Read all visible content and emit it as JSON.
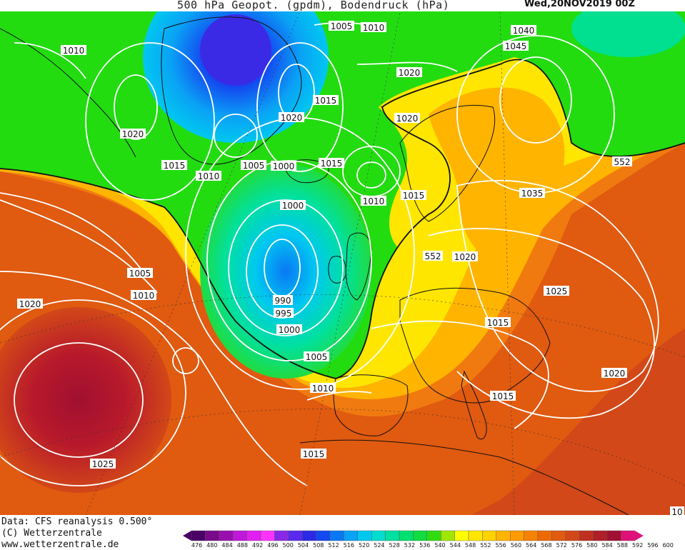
{
  "header": {
    "title": "500 hPa Geopot. (gpdm), Bodendruck (hPa)",
    "datestamp": "Wed,20NOV2019 00Z"
  },
  "footer": {
    "data_source": "Data: CFS reanalysis 0.500°",
    "copyright": "(C) Wetterzentrale",
    "website": "www.wetterzentrale.de"
  },
  "legend": {
    "ticks": [
      "476",
      "480",
      "484",
      "488",
      "492",
      "496",
      "500",
      "504",
      "508",
      "512",
      "516",
      "520",
      "524",
      "528",
      "532",
      "536",
      "540",
      "544",
      "548",
      "552",
      "556",
      "560",
      "564",
      "568",
      "572",
      "576",
      "580",
      "584",
      "588",
      "592",
      "596",
      "600"
    ],
    "colors": [
      "#4b0066",
      "#7a0a8a",
      "#9b0fb0",
      "#c018d8",
      "#e21ff2",
      "#ff33ff",
      "#8a28e8",
      "#5a2aee",
      "#2a2ae6",
      "#1448f0",
      "#0a78f5",
      "#0aa2f5",
      "#00c8f0",
      "#00dcd0",
      "#00e0a0",
      "#00e070",
      "#10dc40",
      "#30dc10",
      "#a0e600",
      "#ffff00",
      "#ffe600",
      "#ffd200",
      "#ffb400",
      "#ff9a00",
      "#f58200",
      "#ee6a00",
      "#e05a10",
      "#d24818",
      "#c03020",
      "#b01e28",
      "#a01030",
      "#e0107a"
    ]
  },
  "map": {
    "colors": {
      "ocean_deep": "#e6511e",
      "warm_red": "#b8192b",
      "orange": "#f07a10",
      "yellow": "#ffe600",
      "green": "#22dc10",
      "teal": "#00e090",
      "cyan": "#00c8f0",
      "blue": "#1448f0",
      "violet": "#3a2ae6",
      "isobar": "#ffffff",
      "coast": "#111111"
    },
    "isobar_labels": [
      "1005",
      "1010",
      "1040",
      "1045",
      "1010",
      "1020",
      "1015",
      "1020",
      "1020",
      "1020",
      "1015",
      "1010",
      "1005",
      "1015",
      "1010",
      "1015",
      "1035",
      "1000",
      "552",
      "1020",
      "990",
      "995",
      "1000",
      "1005",
      "1025",
      "1015",
      "1020",
      "1015",
      "1010",
      "1015",
      "1020",
      "1005",
      "1010",
      "1025",
      "552",
      "10",
      "1000"
    ]
  }
}
